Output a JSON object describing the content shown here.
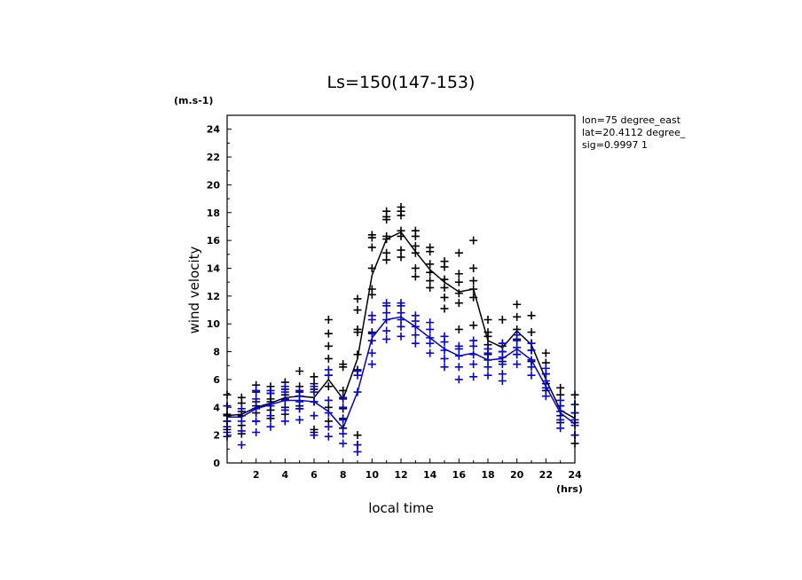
{
  "chart_data": {
    "type": "scatter",
    "title": "Ls=150(147-153)",
    "xlabel": "local time",
    "ylabel": "wind velocity",
    "y_units": "(m.s-1)",
    "x_units": "(hrs)",
    "xlim": [
      0,
      24
    ],
    "ylim": [
      0,
      25
    ],
    "x_ticks": [
      2,
      4,
      6,
      8,
      10,
      12,
      14,
      16,
      18,
      20,
      22,
      24
    ],
    "y_ticks": [
      0,
      2,
      4,
      6,
      8,
      10,
      12,
      14,
      16,
      18,
      20,
      22,
      24
    ],
    "annotations": [
      "lon=75 degree_east",
      "lat=20.4112 degree_",
      "sig=0.9997 1"
    ],
    "colors": {
      "series_black": "#000000",
      "series_blue": "#0000e0"
    },
    "hours": [
      0,
      1,
      2,
      3,
      4,
      5,
      6,
      7,
      8,
      9,
      10,
      11,
      12,
      13,
      14,
      15,
      16,
      17,
      18,
      19,
      20,
      21,
      22,
      23,
      24
    ],
    "series": [
      {
        "name": "black",
        "mean": [
          3.4,
          3.5,
          4.0,
          4.3,
          4.7,
          4.8,
          4.7,
          6.0,
          4.6,
          7.5,
          13.5,
          16.1,
          16.6,
          15.2,
          13.9,
          13.0,
          12.3,
          12.5,
          8.8,
          8.3,
          9.5,
          8.5,
          6.0,
          3.8,
          3.2
        ],
        "points": [
          [
            3.0,
            3.5,
            4.1,
            4.9,
            2.4,
            3.4
          ],
          [
            2.7,
            3.4,
            4.3,
            4.7,
            2.1,
            3.7
          ],
          [
            3.6,
            4.1,
            5.1,
            5.6,
            3.0,
            4.4
          ],
          [
            3.8,
            4.4,
            5.0,
            5.5,
            3.2,
            4.6
          ],
          [
            4.0,
            4.6,
            5.3,
            5.8,
            3.5,
            4.9
          ],
          [
            4.1,
            4.8,
            5.5,
            6.6,
            3.9,
            5.1
          ],
          [
            2.4,
            4.4,
            5.3,
            6.2,
            2.2,
            5.7
          ],
          [
            4.0,
            5.5,
            7.5,
            9.3,
            10.3,
            8.4,
            3.0,
            6.3
          ],
          [
            2.5,
            3.9,
            4.6,
            5.2,
            6.9,
            7.1,
            3.2
          ],
          [
            1.3,
            2.0,
            6.7,
            7.8,
            9.4,
            11.0,
            11.8,
            9.6
          ],
          [
            9.4,
            12.1,
            12.5,
            14.0,
            15.5,
            16.2,
            16.4
          ],
          [
            14.6,
            15.1,
            16.1,
            16.3,
            17.7,
            18.1,
            17.5
          ],
          [
            14.8,
            15.3,
            16.3,
            16.7,
            17.8,
            18.4,
            18.1
          ],
          [
            13.4,
            14.0,
            15.1,
            15.6,
            16.3,
            16.7
          ],
          [
            12.6,
            13.1,
            13.7,
            14.3,
            15.2,
            15.5
          ],
          [
            11.1,
            11.9,
            12.6,
            13.2,
            14.1,
            14.5
          ],
          [
            9.6,
            11.5,
            12.2,
            13.0,
            13.6,
            15.1
          ],
          [
            9.9,
            11.9,
            12.5,
            13.1,
            14.0,
            16.0
          ],
          [
            7.8,
            8.5,
            9.1,
            9.4,
            10.3
          ],
          [
            7.3,
            8.0,
            8.4,
            8.6,
            10.3
          ],
          [
            7.8,
            8.9,
            9.6,
            10.5,
            11.4
          ],
          [
            7.3,
            8.1,
            8.6,
            9.4,
            10.6
          ],
          [
            5.2,
            5.7,
            6.4,
            7.2,
            7.9
          ],
          [
            2.9,
            3.4,
            4.1,
            4.9,
            5.4
          ],
          [
            1.4,
            2.0,
            2.9,
            3.6,
            4.2,
            4.9
          ]
        ]
      },
      {
        "name": "blue",
        "mean": [
          3.3,
          3.3,
          3.9,
          4.2,
          4.5,
          4.5,
          4.4,
          3.7,
          2.5,
          5.1,
          9.0,
          10.3,
          10.5,
          9.8,
          9.0,
          8.2,
          7.7,
          7.9,
          7.4,
          7.5,
          8.2,
          7.4,
          5.5,
          3.6,
          2.8
        ],
        "points": [
          [
            1.9,
            2.6,
            3.0,
            4.1,
            2.2
          ],
          [
            1.3,
            2.3,
            3.0,
            3.9
          ],
          [
            2.2,
            3.0,
            3.9,
            4.6,
            5.2
          ],
          [
            2.6,
            3.4,
            4.1,
            5.0,
            5.2
          ],
          [
            3.0,
            3.8,
            4.5,
            5.1,
            5.5
          ],
          [
            3.1,
            3.9,
            4.4,
            4.8,
            5.2
          ],
          [
            2.0,
            3.4,
            4.4,
            5.1,
            5.5
          ],
          [
            1.9,
            2.6,
            3.6,
            4.5,
            6.7,
            6.3
          ],
          [
            1.4,
            2.1,
            3.1,
            4.0,
            4.7
          ],
          [
            0.8,
            1.3,
            5.1,
            6.6,
            6.3
          ],
          [
            7.1,
            7.9,
            8.8,
            9.3,
            10.3,
            10.6
          ],
          [
            8.9,
            9.5,
            10.3,
            10.8,
            11.3,
            11.5
          ],
          [
            9.1,
            9.8,
            10.3,
            10.8,
            11.3,
            11.5
          ],
          [
            8.6,
            9.2,
            9.8,
            10.2,
            10.6
          ],
          [
            7.9,
            8.6,
            9.0,
            9.6,
            10.1
          ],
          [
            6.9,
            7.5,
            8.1,
            8.7,
            9.1
          ],
          [
            6.0,
            6.9,
            7.7,
            8.2,
            8.4
          ],
          [
            6.2,
            7.1,
            7.8,
            8.4,
            8.8
          ],
          [
            6.3,
            6.9,
            7.4,
            7.9,
            8.2
          ],
          [
            5.9,
            6.4,
            7.1,
            7.6,
            8.0,
            8.6
          ],
          [
            7.1,
            7.8,
            8.3,
            8.8,
            9.2
          ],
          [
            6.3,
            6.9,
            7.4,
            8.1,
            8.6
          ],
          [
            4.8,
            5.4,
            5.9,
            6.4,
            6.8
          ],
          [
            2.5,
            3.1,
            3.7,
            4.1,
            4.5
          ],
          [
            2.0,
            2.7,
            3.1,
            3.6,
            4.2
          ]
        ]
      }
    ]
  }
}
